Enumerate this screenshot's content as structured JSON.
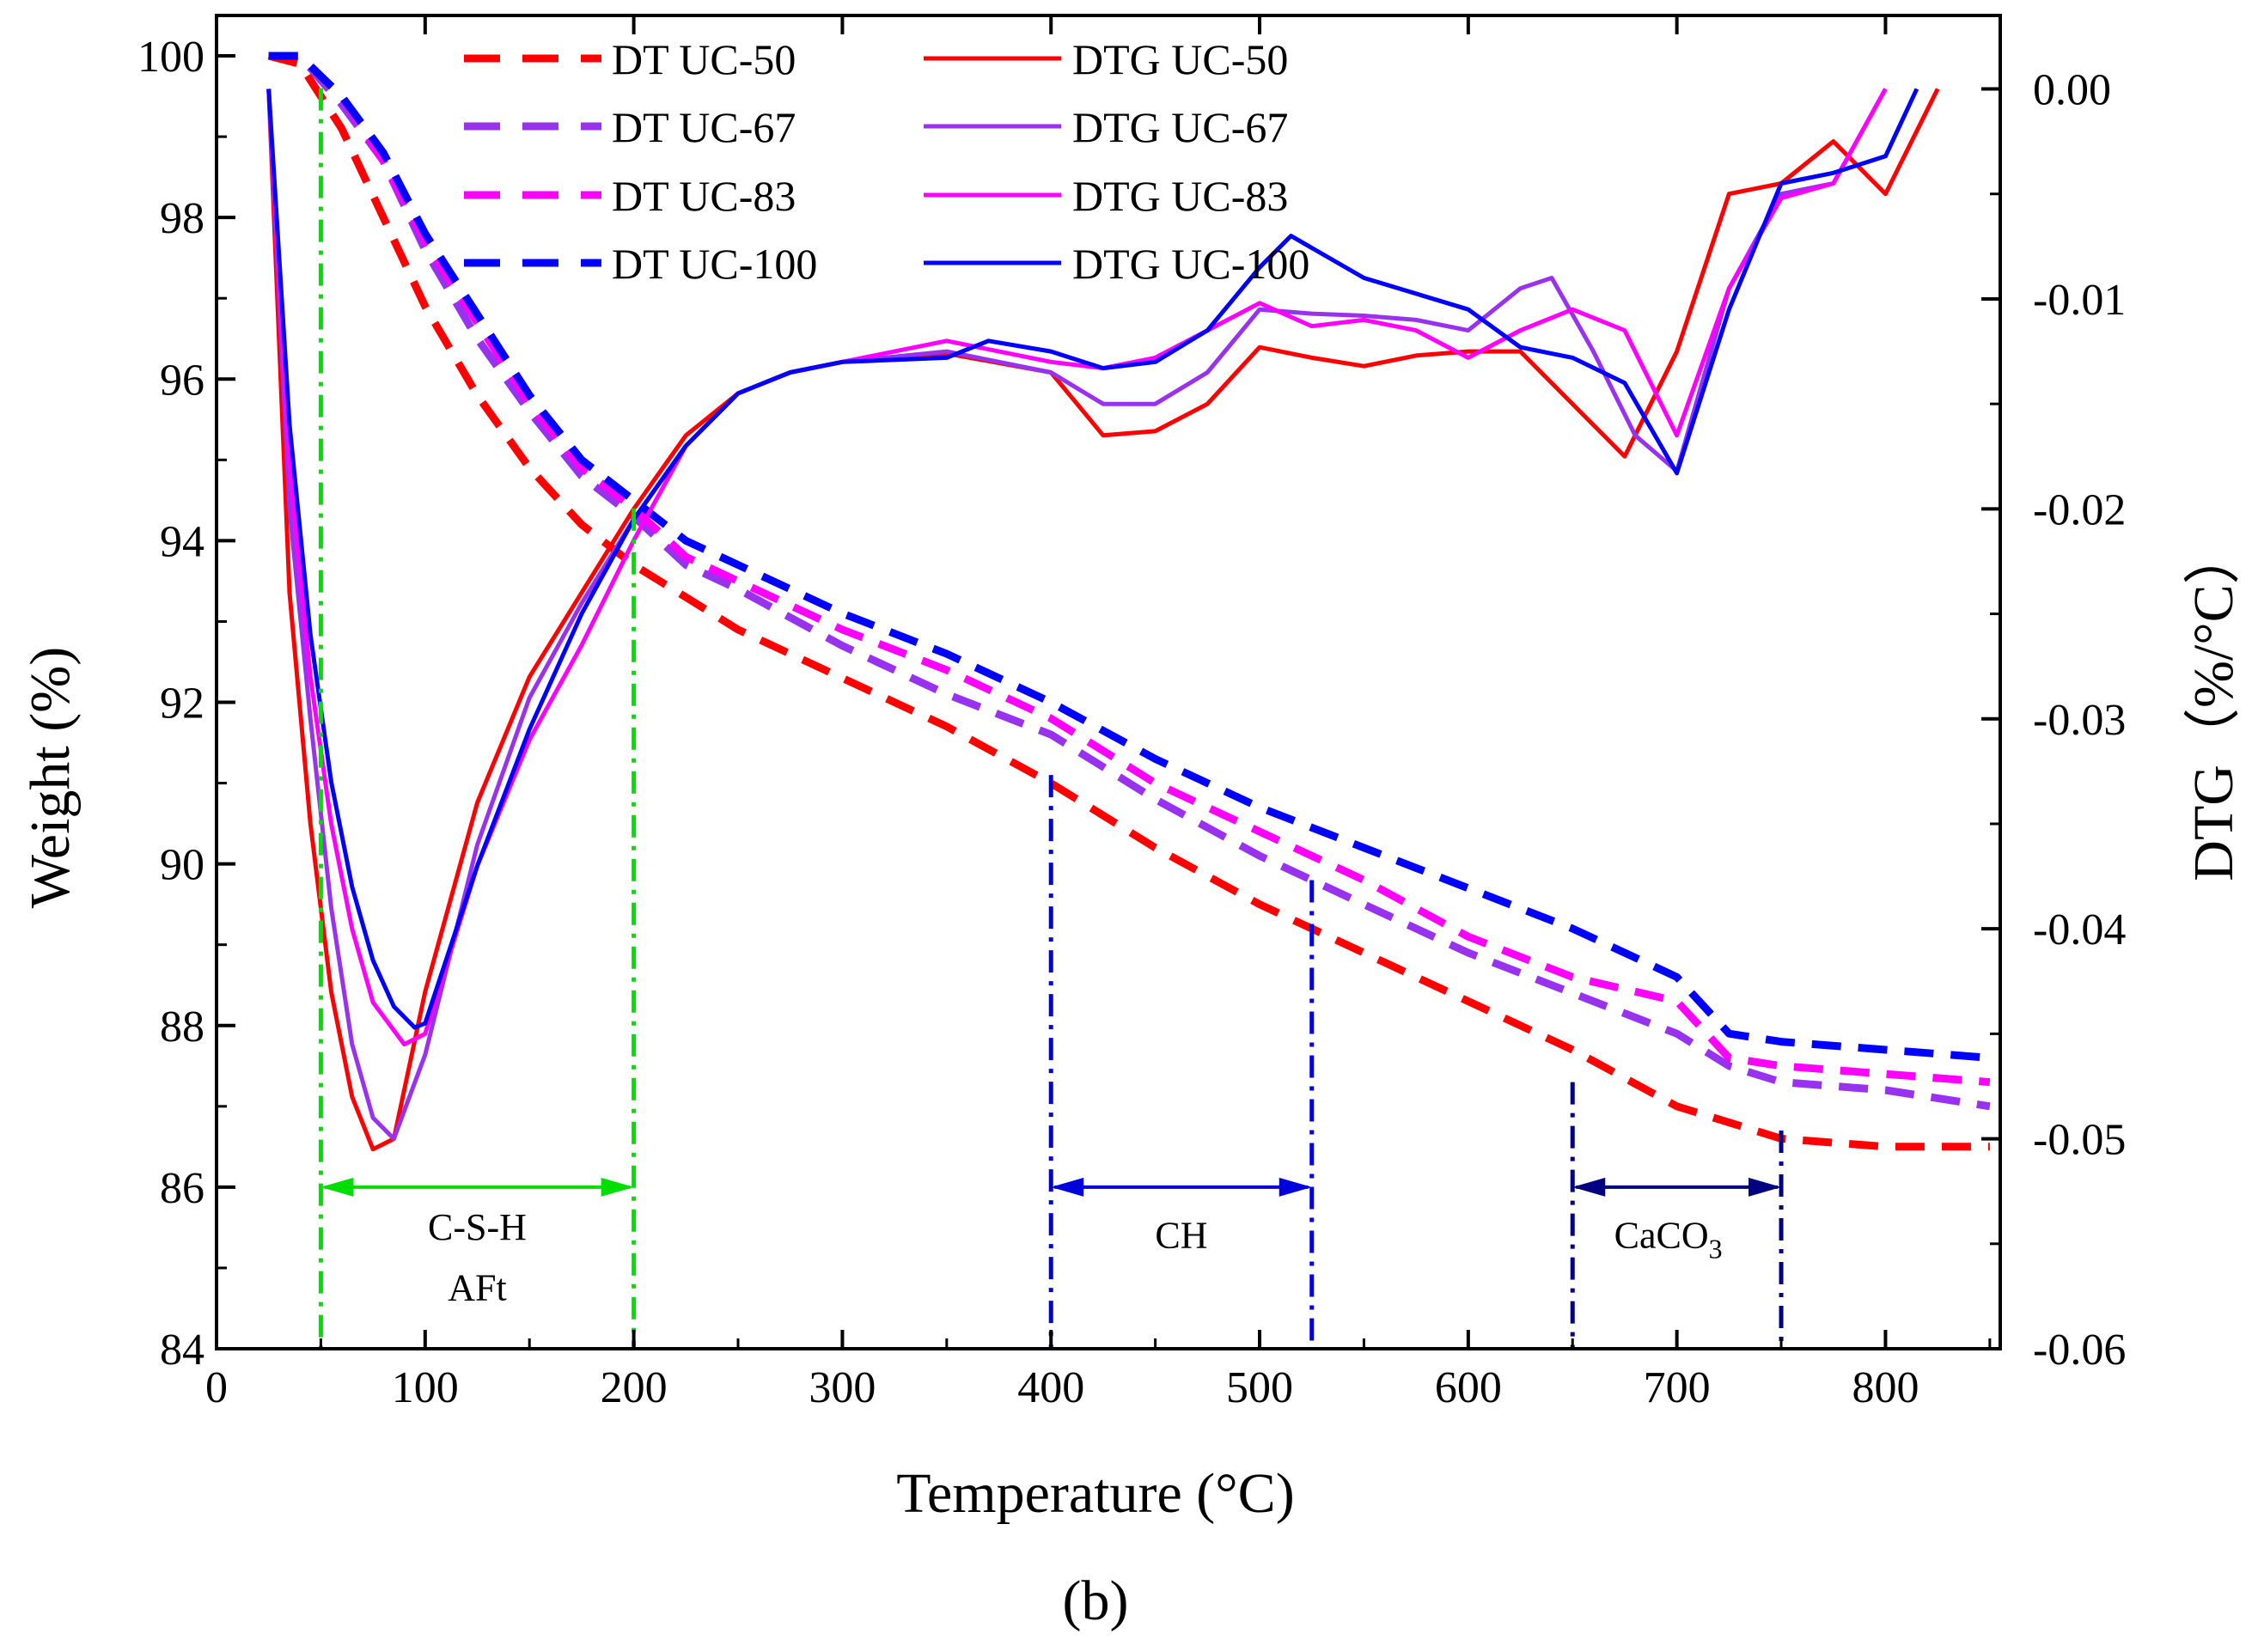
{
  "chart_data": {
    "type": "line",
    "title": "",
    "caption": "(b)",
    "xlabel": "Temperature (°C)",
    "ylabel_left": "Weight (%)",
    "ylabel_right": "DTG（%/°C）",
    "xlim": [
      0,
      855
    ],
    "ylim_left": [
      84,
      100.5
    ],
    "ylim_right": [
      -0.06,
      0.0035
    ],
    "x_ticks": [
      0,
      100,
      200,
      300,
      400,
      500,
      600,
      700,
      800
    ],
    "y_left_ticks": [
      84,
      86,
      88,
      90,
      92,
      94,
      96,
      98,
      100
    ],
    "y_right_ticks": [
      -0.06,
      -0.05,
      -0.04,
      -0.03,
      -0.02,
      -0.01,
      0.0
    ],
    "y_right_tick_labels": [
      "-0.06",
      "-0.05",
      "-0.04",
      "-0.03",
      "-0.02",
      "-0.01",
      "0.00"
    ],
    "legend_placement": "top",
    "series": [
      {
        "name": "DT UC-50",
        "axis": "left",
        "style": "dashed",
        "color": "#ff0000",
        "x": [
          25,
          40,
          60,
          80,
          100,
          125,
          150,
          175,
          200,
          225,
          250,
          300,
          350,
          400,
          450,
          500,
          550,
          600,
          650,
          700,
          750,
          800,
          850
        ],
        "values": [
          100.0,
          99.9,
          99.1,
          98.0,
          96.9,
          95.8,
          94.9,
          94.2,
          93.7,
          93.3,
          92.9,
          92.3,
          91.7,
          91.0,
          90.2,
          89.5,
          88.9,
          88.3,
          87.7,
          87.0,
          86.6,
          86.5,
          86.5
        ]
      },
      {
        "name": "DT UC-67",
        "axis": "left",
        "style": "dashed",
        "color": "#9932ee",
        "x": [
          25,
          40,
          60,
          80,
          100,
          125,
          150,
          175,
          200,
          225,
          250,
          300,
          350,
          400,
          450,
          500,
          550,
          600,
          650,
          700,
          725,
          750,
          800,
          850
        ],
        "values": [
          100.0,
          100.0,
          99.4,
          98.7,
          97.6,
          96.5,
          95.6,
          94.8,
          94.3,
          93.7,
          93.4,
          92.7,
          92.1,
          91.6,
          90.8,
          90.1,
          89.5,
          88.9,
          88.4,
          87.9,
          87.5,
          87.3,
          87.2,
          87.0
        ]
      },
      {
        "name": "DT UC-83",
        "axis": "left",
        "style": "dashed",
        "color": "#ff00ff",
        "x": [
          25,
          40,
          60,
          80,
          100,
          125,
          150,
          175,
          200,
          225,
          250,
          300,
          350,
          400,
          450,
          500,
          550,
          600,
          650,
          700,
          725,
          750,
          800,
          850
        ],
        "values": [
          100.0,
          100.0,
          99.5,
          98.7,
          97.7,
          96.7,
          95.7,
          94.9,
          94.4,
          93.8,
          93.5,
          92.9,
          92.4,
          91.8,
          91.0,
          90.4,
          89.8,
          89.1,
          88.6,
          88.3,
          87.6,
          87.5,
          87.4,
          87.3
        ]
      },
      {
        "name": "DT  UC-100",
        "axis": "left",
        "style": "dashed",
        "color": "#0000ff",
        "x": [
          25,
          40,
          60,
          80,
          100,
          125,
          150,
          175,
          200,
          225,
          250,
          300,
          350,
          400,
          450,
          500,
          550,
          600,
          650,
          700,
          725,
          750,
          800,
          850
        ],
        "values": [
          100.0,
          100.0,
          99.5,
          98.8,
          97.8,
          96.8,
          95.8,
          95.0,
          94.5,
          94.0,
          93.7,
          93.1,
          92.6,
          92.0,
          91.3,
          90.7,
          90.2,
          89.7,
          89.2,
          88.6,
          87.9,
          87.8,
          87.7,
          87.6
        ]
      },
      {
        "name": "DTG UC-50",
        "axis": "right",
        "style": "solid",
        "color": "#ff0000",
        "x": [
          25,
          35,
          45,
          55,
          65,
          75,
          85,
          100,
          125,
          150,
          175,
          200,
          225,
          250,
          275,
          300,
          350,
          400,
          425,
          450,
          475,
          500,
          525,
          550,
          575,
          600,
          625,
          650,
          675,
          700,
          725,
          750,
          775,
          800,
          825
        ],
        "values": [
          0.0,
          -0.024,
          -0.035,
          -0.043,
          -0.048,
          -0.0505,
          -0.05,
          -0.043,
          -0.034,
          -0.028,
          -0.024,
          -0.02,
          -0.0165,
          -0.0145,
          -0.0135,
          -0.013,
          -0.0126,
          -0.0135,
          -0.0165,
          -0.0163,
          -0.015,
          -0.0123,
          -0.0128,
          -0.0132,
          -0.0127,
          -0.0125,
          -0.0125,
          -0.015,
          -0.0175,
          -0.0125,
          -0.005,
          -0.0045,
          -0.0025,
          -0.005,
          0.0
        ]
      },
      {
        "name": "DTG UC-67",
        "axis": "right",
        "style": "solid",
        "color": "#9932ee",
        "x": [
          25,
          35,
          45,
          55,
          65,
          75,
          85,
          100,
          125,
          150,
          175,
          200,
          225,
          250,
          275,
          300,
          350,
          400,
          425,
          450,
          475,
          500,
          525,
          550,
          575,
          600,
          625,
          640,
          660,
          680,
          700,
          725,
          750,
          775,
          800
        ],
        "values": [
          0.0,
          -0.02,
          -0.03,
          -0.039,
          -0.0455,
          -0.049,
          -0.05,
          -0.046,
          -0.036,
          -0.029,
          -0.0245,
          -0.0205,
          -0.017,
          -0.0145,
          -0.0135,
          -0.013,
          -0.0125,
          -0.0135,
          -0.015,
          -0.015,
          -0.0135,
          -0.0105,
          -0.0107,
          -0.0108,
          -0.011,
          -0.0115,
          -0.0095,
          -0.009,
          -0.0125,
          -0.0165,
          -0.0182,
          -0.0095,
          -0.005,
          -0.0045,
          0.0
        ]
      },
      {
        "name": "DTG UC-83",
        "axis": "right",
        "style": "solid",
        "color": "#ff00ff",
        "x": [
          25,
          35,
          45,
          55,
          65,
          75,
          90,
          100,
          125,
          150,
          175,
          200,
          225,
          250,
          275,
          300,
          350,
          400,
          425,
          450,
          475,
          500,
          525,
          550,
          575,
          600,
          625,
          650,
          675,
          700,
          725,
          750,
          775,
          800
        ],
        "values": [
          0.0,
          -0.018,
          -0.028,
          -0.035,
          -0.04,
          -0.0435,
          -0.0455,
          -0.045,
          -0.037,
          -0.031,
          -0.0265,
          -0.0215,
          -0.017,
          -0.0145,
          -0.0135,
          -0.013,
          -0.012,
          -0.013,
          -0.0133,
          -0.0128,
          -0.0115,
          -0.0102,
          -0.0113,
          -0.011,
          -0.0115,
          -0.0128,
          -0.0115,
          -0.0105,
          -0.0115,
          -0.0165,
          -0.0095,
          -0.0052,
          -0.0045,
          0.0
        ]
      },
      {
        "name": "DTG UC-100",
        "axis": "right",
        "style": "solid",
        "color": "#0000ff",
        "x": [
          25,
          35,
          45,
          55,
          65,
          75,
          85,
          95,
          100,
          125,
          150,
          175,
          200,
          225,
          250,
          275,
          300,
          350,
          370,
          400,
          425,
          450,
          475,
          500,
          515,
          550,
          600,
          625,
          650,
          675,
          700,
          725,
          750,
          775,
          800,
          815
        ],
        "values": [
          0.0,
          -0.016,
          -0.026,
          -0.033,
          -0.038,
          -0.0415,
          -0.0437,
          -0.0447,
          -0.0445,
          -0.037,
          -0.0305,
          -0.025,
          -0.0205,
          -0.017,
          -0.0145,
          -0.0135,
          -0.013,
          -0.0128,
          -0.012,
          -0.0125,
          -0.0133,
          -0.013,
          -0.0115,
          -0.0085,
          -0.007,
          -0.009,
          -0.0105,
          -0.0123,
          -0.0128,
          -0.014,
          -0.0183,
          -0.0105,
          -0.0045,
          -0.004,
          -0.0032,
          0.0
        ]
      }
    ],
    "annotations": [
      {
        "label_lines": [
          "C-S-H",
          "AFt"
        ],
        "x_start": 50,
        "x_end": 200,
        "color": "#00dd00"
      },
      {
        "label_lines": [
          "CH"
        ],
        "x_start": 400,
        "x_end": 525,
        "color": "#0000dd"
      },
      {
        "label_lines": [
          "CaCO",
          "3"
        ],
        "x_start": 650,
        "x_end": 750,
        "color": "#000080"
      }
    ]
  }
}
